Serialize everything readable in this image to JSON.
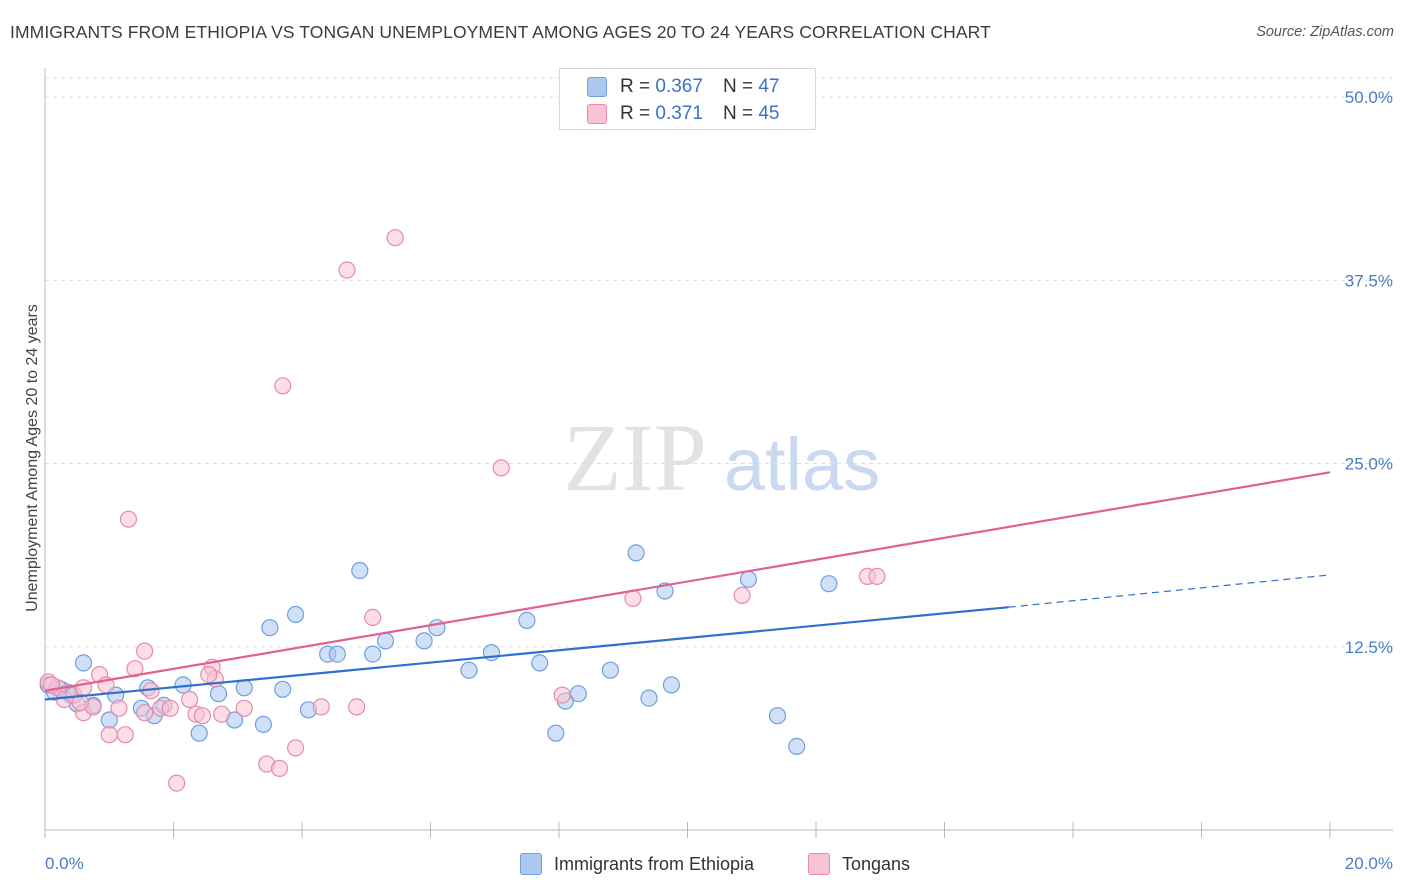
{
  "title": "IMMIGRANTS FROM ETHIOPIA VS TONGAN UNEMPLOYMENT AMONG AGES 20 TO 24 YEARS CORRELATION CHART",
  "source": "Source: ZipAtlas.com",
  "watermark": {
    "zip": "ZIP",
    "atlas": "atlas"
  },
  "legend": {
    "rows": [
      {
        "r_label": "R =",
        "r_value": "0.367",
        "n_label": "N =",
        "n_value": "47",
        "color": "#aac8f0",
        "border": "#6f9fdc"
      },
      {
        "r_label": "R =",
        "r_value": "0.371",
        "n_label": "N =",
        "n_value": "45",
        "color": "#f8c3d4",
        "border": "#e88aa8"
      }
    ]
  },
  "bottom_legend": [
    "Immigrants from Ethiopia",
    "Tongans"
  ],
  "chart_data": {
    "type": "scatter",
    "title": "IMMIGRANTS FROM ETHIOPIA VS TONGAN UNEMPLOYMENT AMONG AGES 20 TO 24 YEARS CORRELATION CHART",
    "xlabel": "",
    "ylabel": "Unemployment Among Ages 20 to 24 years",
    "xlim": [
      0,
      20
    ],
    "ylim": [
      0,
      50
    ],
    "x_tick_labels": [
      "0.0%",
      "20.0%"
    ],
    "y_tick_labels": [
      "12.5%",
      "25.0%",
      "37.5%",
      "50.0%"
    ],
    "y_ticks": [
      12.5,
      25.0,
      37.5,
      50.0
    ],
    "grid": true,
    "legend_position": "top-center",
    "series": [
      {
        "name": "Immigrants from Ethiopia",
        "color": "#6f9fdc",
        "fill": "#aac8f0",
        "trend_color": "#2f6fcf",
        "trend": {
          "x0": 0.0,
          "y0": 8.9,
          "x1": 15.0,
          "y1": 15.2,
          "dash_to_x": 20.0,
          "dash_to_y": 17.4
        },
        "points": [
          [
            0.05,
            9.9
          ],
          [
            0.15,
            9.4
          ],
          [
            0.25,
            9.6
          ],
          [
            0.4,
            9.2
          ],
          [
            0.5,
            8.6
          ],
          [
            0.6,
            11.4
          ],
          [
            0.75,
            8.5
          ],
          [
            1.0,
            7.5
          ],
          [
            1.1,
            9.2
          ],
          [
            1.5,
            8.3
          ],
          [
            1.6,
            9.7
          ],
          [
            1.7,
            7.8
          ],
          [
            1.85,
            8.5
          ],
          [
            2.15,
            9.9
          ],
          [
            2.4,
            6.6
          ],
          [
            2.7,
            9.3
          ],
          [
            2.95,
            7.5
          ],
          [
            3.1,
            9.7
          ],
          [
            3.4,
            7.2
          ],
          [
            3.5,
            13.8
          ],
          [
            3.7,
            9.6
          ],
          [
            3.9,
            14.7
          ],
          [
            4.1,
            8.2
          ],
          [
            4.4,
            12.0
          ],
          [
            4.55,
            12.0
          ],
          [
            4.9,
            17.7
          ],
          [
            5.1,
            12.0
          ],
          [
            5.3,
            12.9
          ],
          [
            5.9,
            12.9
          ],
          [
            6.1,
            13.8
          ],
          [
            6.6,
            10.9
          ],
          [
            6.95,
            12.1
          ],
          [
            7.5,
            14.3
          ],
          [
            7.7,
            11.4
          ],
          [
            7.95,
            6.6
          ],
          [
            8.1,
            8.8
          ],
          [
            8.3,
            9.3
          ],
          [
            8.8,
            10.9
          ],
          [
            9.2,
            18.9
          ],
          [
            9.4,
            9.0
          ],
          [
            9.65,
            16.3
          ],
          [
            9.75,
            9.9
          ],
          [
            10.95,
            17.1
          ],
          [
            11.4,
            7.8
          ],
          [
            11.7,
            5.7
          ],
          [
            12.2,
            16.8
          ],
          [
            0.35,
            9.4
          ]
        ]
      },
      {
        "name": "Tongans",
        "color": "#e88aa8",
        "fill": "#f8c3d4",
        "trend_color": "#e2608e",
        "trend": {
          "x0": 0.0,
          "y0": 9.5,
          "x1": 20.0,
          "y1": 24.4
        },
        "points": [
          [
            0.05,
            10.1
          ],
          [
            0.2,
            9.7
          ],
          [
            0.3,
            8.9
          ],
          [
            0.45,
            9.2
          ],
          [
            0.6,
            9.7
          ],
          [
            0.6,
            8.0
          ],
          [
            0.75,
            8.4
          ],
          [
            0.85,
            10.6
          ],
          [
            0.95,
            9.9
          ],
          [
            1.0,
            6.5
          ],
          [
            1.15,
            8.3
          ],
          [
            1.25,
            6.5
          ],
          [
            1.3,
            21.2
          ],
          [
            1.4,
            11.0
          ],
          [
            1.55,
            12.2
          ],
          [
            1.55,
            8.0
          ],
          [
            1.65,
            9.5
          ],
          [
            1.8,
            8.3
          ],
          [
            1.95,
            8.3
          ],
          [
            2.05,
            3.2
          ],
          [
            2.25,
            8.9
          ],
          [
            2.35,
            7.9
          ],
          [
            2.45,
            7.8
          ],
          [
            2.6,
            11.1
          ],
          [
            2.65,
            10.3
          ],
          [
            2.75,
            7.9
          ],
          [
            3.1,
            8.3
          ],
          [
            3.45,
            4.5
          ],
          [
            3.65,
            4.2
          ],
          [
            3.7,
            30.3
          ],
          [
            3.9,
            5.6
          ],
          [
            4.3,
            8.4
          ],
          [
            4.7,
            38.2
          ],
          [
            4.85,
            8.4
          ],
          [
            5.1,
            14.5
          ],
          [
            5.45,
            40.4
          ],
          [
            7.1,
            24.7
          ],
          [
            8.05,
            9.2
          ],
          [
            9.15,
            15.8
          ],
          [
            10.85,
            16.0
          ],
          [
            12.8,
            17.3
          ],
          [
            12.95,
            17.3
          ],
          [
            0.1,
            9.9
          ],
          [
            0.55,
            8.7
          ],
          [
            2.55,
            10.6
          ]
        ]
      }
    ]
  }
}
